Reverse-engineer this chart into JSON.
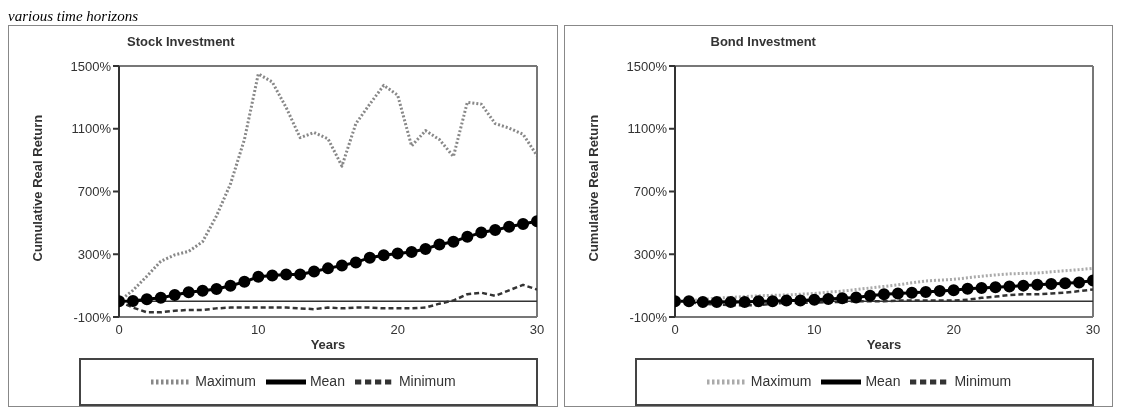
{
  "chart_data": [
    {
      "type": "line",
      "title": "Stock Investment",
      "xlabel": "Years",
      "ylabel": "Cumulative Real Return",
      "annotations": [
        "various time horizons"
      ],
      "x": [
        0,
        1,
        2,
        3,
        4,
        5,
        6,
        7,
        8,
        9,
        10,
        11,
        12,
        13,
        14,
        15,
        16,
        17,
        18,
        19,
        20,
        21,
        22,
        23,
        24,
        25,
        26,
        27,
        28,
        29,
        30
      ],
      "series": [
        {
          "name": "Minimum",
          "color": "#333333",
          "line_style": "dashed",
          "marker": "none",
          "values": [
            0,
            -40,
            -70,
            -70,
            -60,
            -55,
            -55,
            -45,
            -40,
            -40,
            -40,
            -40,
            -40,
            -45,
            -50,
            -40,
            -45,
            -40,
            -40,
            -45,
            -45,
            -45,
            -40,
            -15,
            5,
            45,
            55,
            35,
            70,
            105,
            75
          ]
        },
        {
          "name": "Mean",
          "color": "#000000",
          "line_style": "solid",
          "marker": "circle",
          "values": [
            0,
            2,
            13,
            22,
            40,
            58,
            67,
            79,
            99,
            124,
            156,
            165,
            171,
            171,
            190,
            210,
            228,
            248,
            278,
            294,
            305,
            314,
            334,
            362,
            380,
            411,
            438,
            454,
            475,
            493,
            511
          ]
        },
        {
          "name": "Maximum",
          "color": "#888888",
          "line_style": "dotted",
          "marker": "none",
          "values": [
            0,
            70,
            160,
            255,
            296,
            318,
            380,
            545,
            748,
            1031,
            1450,
            1398,
            1235,
            1043,
            1076,
            1036,
            862,
            1133,
            1257,
            1377,
            1314,
            990,
            1088,
            1031,
            923,
            1269,
            1257,
            1133,
            1104,
            1065,
            929
          ]
        }
      ],
      "xlim": [
        0,
        30
      ],
      "xticks": [
        0,
        10,
        20,
        30
      ],
      "ylim": [
        -100,
        1500
      ],
      "yticks": [
        {
          "value": -100,
          "label": "-100%"
        },
        {
          "value": 300,
          "label": "300%"
        },
        {
          "value": 700,
          "label": "700%"
        },
        {
          "value": 1100,
          "label": "1100%"
        },
        {
          "value": 1500,
          "label": "1500%"
        }
      ],
      "ref_lines": [
        {
          "axis": "y",
          "value": 0,
          "color": "#333333"
        }
      ],
      "grid": false,
      "legend": "bottom"
    },
    {
      "type": "line",
      "title": "Bond Investment",
      "xlabel": "Years",
      "ylabel": "Cumulative Real Return",
      "x": [
        0,
        1,
        2,
        3,
        4,
        5,
        6,
        7,
        8,
        9,
        10,
        11,
        12,
        13,
        14,
        15,
        16,
        17,
        18,
        19,
        20,
        21,
        22,
        23,
        24,
        25,
        26,
        27,
        28,
        29,
        30
      ],
      "series": [
        {
          "name": "Minimum",
          "color": "#333333",
          "line_style": "dashed",
          "marker": "none",
          "values": [
            0,
            -5,
            -15,
            -20,
            -25,
            -25,
            -25,
            -15,
            -10,
            -10,
            -9,
            -5,
            -5,
            0,
            0,
            0,
            5,
            5,
            5,
            5,
            5,
            10,
            22,
            30,
            40,
            45,
            45,
            50,
            55,
            65,
            75
          ]
        },
        {
          "name": "Mean",
          "color": "#000000",
          "line_style": "solid",
          "marker": "circle",
          "values": [
            0,
            0,
            -5,
            -5,
            -5,
            -5,
            0,
            0,
            5,
            5,
            10,
            15,
            20,
            25,
            35,
            45,
            50,
            55,
            60,
            65,
            70,
            80,
            85,
            90,
            95,
            100,
            105,
            110,
            115,
            120,
            132
          ]
        },
        {
          "name": "Maximum",
          "color": "#aaaaaa",
          "line_style": "dotted",
          "marker": "none",
          "values": [
            0,
            5,
            10,
            20,
            25,
            30,
            35,
            38,
            40,
            45,
            50,
            58,
            65,
            75,
            85,
            95,
            105,
            118,
            130,
            135,
            140,
            150,
            160,
            168,
            175,
            178,
            180,
            188,
            195,
            202,
            210
          ]
        }
      ],
      "xlim": [
        0,
        30
      ],
      "xticks": [
        0,
        10,
        20,
        30
      ],
      "ylim": [
        -100,
        1500
      ],
      "yticks": [
        {
          "value": -100,
          "label": "-100%"
        },
        {
          "value": 300,
          "label": "300%"
        },
        {
          "value": 700,
          "label": "700%"
        },
        {
          "value": 1100,
          "label": "1100%"
        },
        {
          "value": 1500,
          "label": "1500%"
        }
      ],
      "ref_lines": [
        {
          "axis": "y",
          "value": 0,
          "color": "#333333"
        }
      ],
      "grid": false,
      "legend": "bottom"
    }
  ]
}
